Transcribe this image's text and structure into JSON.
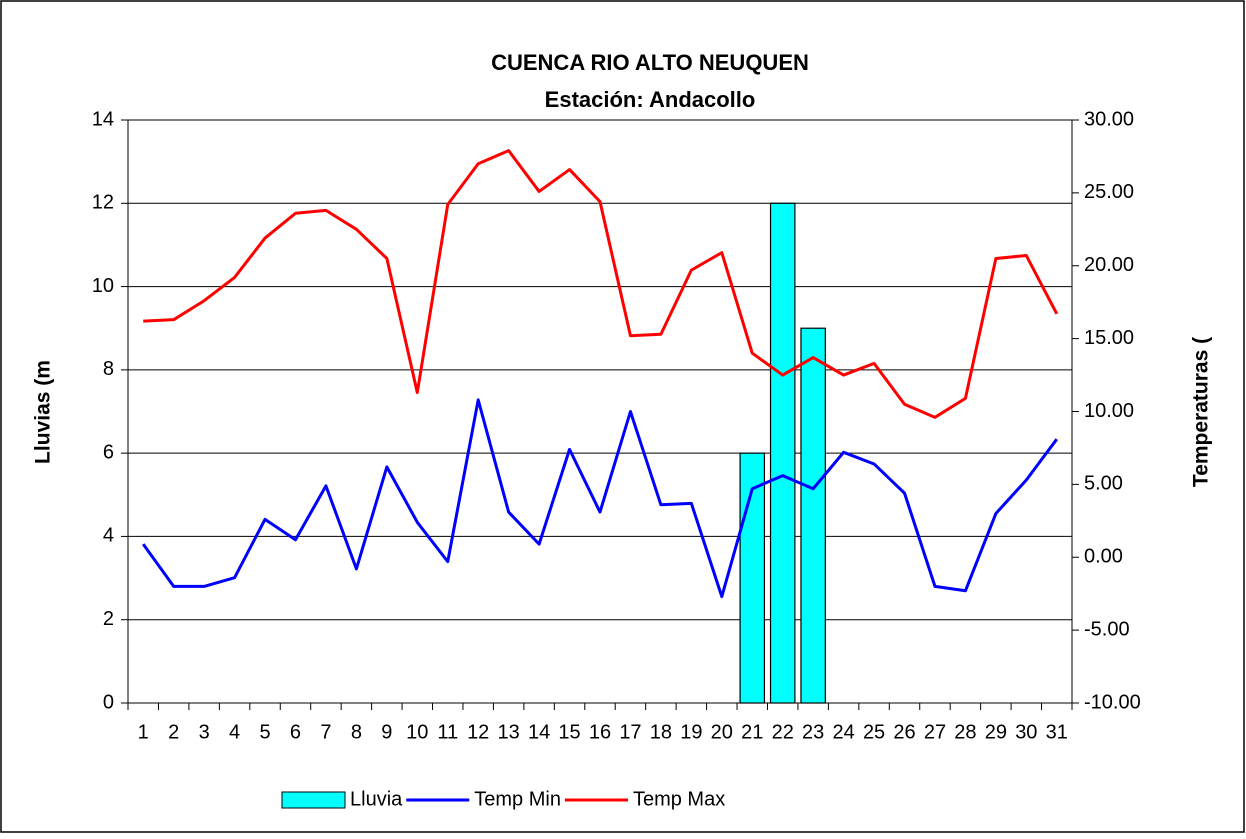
{
  "chart_data": {
    "type": "bar_line",
    "title": "CUENCA RIO ALTO NEUQUEN",
    "subtitle": "Estación: Andacollo",
    "y_label": "Lluvias (m",
    "y2_label": "Temperaturas (",
    "categories": [
      "1",
      "2",
      "3",
      "4",
      "5",
      "6",
      "7",
      "8",
      "9",
      "10",
      "11",
      "12",
      "13",
      "14",
      "15",
      "16",
      "17",
      "18",
      "19",
      "20",
      "21",
      "22",
      "23",
      "24",
      "25",
      "26",
      "27",
      "28",
      "29",
      "30",
      "31"
    ],
    "ylim": [
      0,
      14
    ],
    "yticks": [
      0,
      2,
      4,
      6,
      8,
      10,
      12,
      14
    ],
    "y2lim": [
      -10,
      30
    ],
    "y2ticks": [
      {
        "value": -10,
        "label": "-10.00"
      },
      {
        "value": -5,
        "label": "-5.00"
      },
      {
        "value": 0,
        "label": "0.00"
      },
      {
        "value": 5,
        "label": "5.00"
      },
      {
        "value": 10,
        "label": "10.00"
      },
      {
        "value": 15,
        "label": "15.00"
      },
      {
        "value": 20,
        "label": "20.00"
      },
      {
        "value": 25,
        "label": "25.00"
      },
      {
        "value": 30,
        "label": "30.00"
      }
    ],
    "grid": true,
    "legend": "bottom",
    "series": [
      {
        "name": "Lluvia",
        "type": "bar",
        "color": "#00ffff",
        "values": [
          0,
          0,
          0,
          0,
          0,
          0,
          0,
          0,
          0,
          0,
          0,
          0,
          0,
          0,
          0,
          0,
          0,
          0,
          0,
          0,
          6,
          12,
          9,
          0,
          0,
          0,
          0,
          0,
          0,
          0,
          0
        ]
      },
      {
        "name": "Temp Min",
        "type": "line",
        "axis": "y2",
        "color": "#0000ff",
        "values": [
          0.9,
          -2.0,
          -2.0,
          -1.4,
          2.6,
          1.2,
          4.9,
          -0.8,
          6.2,
          2.4,
          -0.3,
          10.8,
          3.1,
          0.9,
          7.4,
          3.1,
          10.0,
          3.6,
          3.7,
          -2.7,
          4.7,
          5.6,
          4.7,
          7.2,
          6.4,
          4.4,
          -2.0,
          -2.3,
          3.0,
          5.3,
          8.1
        ]
      },
      {
        "name": "Temp Max",
        "type": "line",
        "axis": "y2",
        "color": "#ff0000",
        "values": [
          16.2,
          16.3,
          17.6,
          19.2,
          21.9,
          23.6,
          23.8,
          22.5,
          20.5,
          11.3,
          24.2,
          27.0,
          27.9,
          25.1,
          26.6,
          24.4,
          15.2,
          15.3,
          19.7,
          20.9,
          14.0,
          12.5,
          13.7,
          12.5,
          13.3,
          10.5,
          9.6,
          10.9,
          20.5,
          20.7,
          16.7
        ]
      }
    ]
  }
}
